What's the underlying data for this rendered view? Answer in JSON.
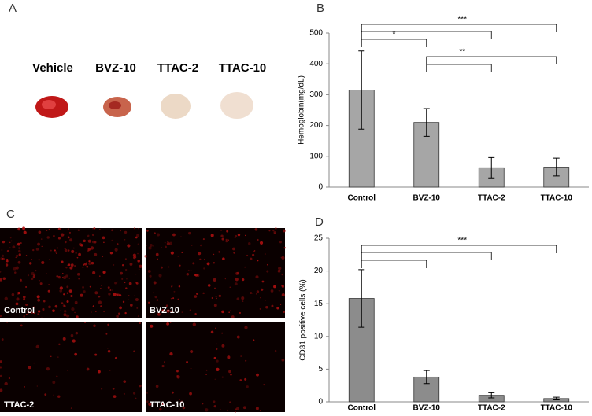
{
  "panel_labels": [
    "A",
    "B",
    "C",
    "D"
  ],
  "panel_a": {
    "labels": [
      "Vehicle",
      "BVZ-10",
      "TTAC-2",
      "TTAC-10"
    ]
  },
  "panel_c": {
    "labels": [
      "Control",
      "BVZ-10",
      "TTAC-2",
      "TTAC-10"
    ]
  },
  "chart_data": [
    {
      "type": "bar",
      "y_label": "Hemoglobin(mg/dL)",
      "categories": [
        "Control",
        "BVZ-10",
        "TTAC-2",
        "TTAC-10"
      ],
      "values": [
        315,
        210,
        63,
        65
      ],
      "errors": [
        127,
        45,
        33,
        29
      ],
      "color": "#a6a6a6",
      "ylim": [
        0,
        500
      ],
      "yticks": [
        0,
        100,
        200,
        300,
        400,
        500
      ],
      "significance": [
        {
          "pairs": [
            [
              0,
              3
            ],
            [
              0,
              2
            ]
          ],
          "label": "***"
        },
        {
          "pairs": [
            [
              0,
              1
            ]
          ],
          "label": "*"
        },
        {
          "pairs": [
            [
              1,
              3
            ],
            [
              1,
              2
            ]
          ],
          "label": "**"
        }
      ]
    },
    {
      "type": "bar",
      "y_label": "CD31 positive cells (%)",
      "categories": [
        "Control",
        "BVZ-10",
        "TTAC-2",
        "TTAC-10"
      ],
      "values": [
        15.8,
        3.8,
        1.0,
        0.5
      ],
      "errors": [
        4.4,
        1.0,
        0.4,
        0.2
      ],
      "color": "#8c8c8c",
      "ylim": [
        0,
        25
      ],
      "yticks": [
        0,
        5,
        10,
        15,
        20,
        25
      ],
      "significance": [
        {
          "pairs": [
            [
              0,
              3
            ],
            [
              0,
              2
            ],
            [
              0,
              1
            ]
          ],
          "label": "***"
        }
      ]
    }
  ]
}
